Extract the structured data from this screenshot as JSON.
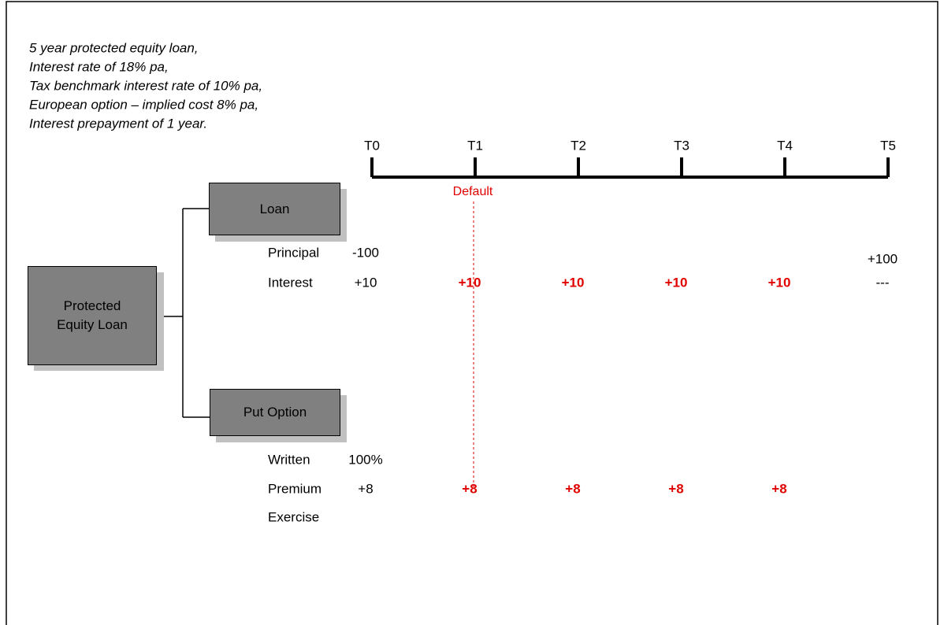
{
  "notes": [
    "5 year protected equity loan,",
    "Interest rate of 18% pa,",
    "Tax benchmark interest rate of 10% pa,",
    "European option – implied cost 8% pa,",
    "Interest prepayment of 1 year."
  ],
  "timeline": {
    "periods": [
      "T0",
      "T1",
      "T2",
      "T3",
      "T4",
      "T5"
    ],
    "default_label": "Default"
  },
  "nodes": [
    {
      "label": "Protected Equity Loan"
    },
    {
      "label": "Loan"
    },
    {
      "label": "Put Option"
    }
  ],
  "loan": {
    "rows": [
      {
        "label": "Principal",
        "cells": [
          "-100",
          null,
          null,
          null,
          null,
          "+100"
        ]
      },
      {
        "label": "Interest",
        "cells": [
          "+10",
          "+10",
          "+10",
          "+10",
          "+10",
          "---"
        ]
      }
    ]
  },
  "put_option": {
    "rows": [
      {
        "label": "Written",
        "cells": [
          "100%"
        ]
      },
      {
        "label": "Premium",
        "cells": [
          "+8",
          "+8",
          "+8",
          "+8",
          "+8"
        ]
      },
      {
        "label": "Exercise",
        "cells": []
      }
    ]
  }
}
